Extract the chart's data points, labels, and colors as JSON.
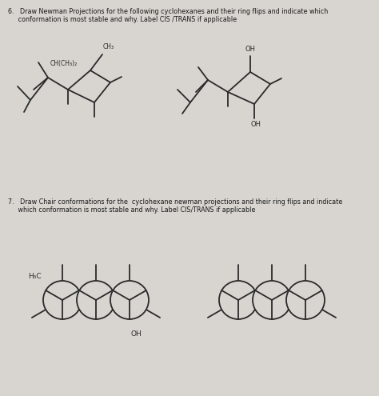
{
  "bg_color": "#d8d5d0",
  "text_color": "#1a1a1a",
  "line_color": "#2a2a2a",
  "q6_line1": "6.   Draw Newman Projections for the following cyclohexanes and their ring flips and indicate which",
  "q6_line2": "     conformation is most stable and why. Label CIS /TRANS if applicable",
  "q7_line1": "7.   Draw Chair conformations for the  cyclohexane newman projections and their ring flips and indicate",
  "q7_line2": "     which conformation is most stable and why. Label CIS∕TRANS if applicable",
  "label_CH_CH3_2": "CH(CH₃)₂",
  "label_CH3": "CH₃",
  "label_OH_top": "OH",
  "label_OH_bottom": "OH",
  "label_H3C": "H₃C",
  "label_OH_newman": "OH",
  "fig_width": 4.74,
  "fig_height": 4.95,
  "dpi": 100
}
